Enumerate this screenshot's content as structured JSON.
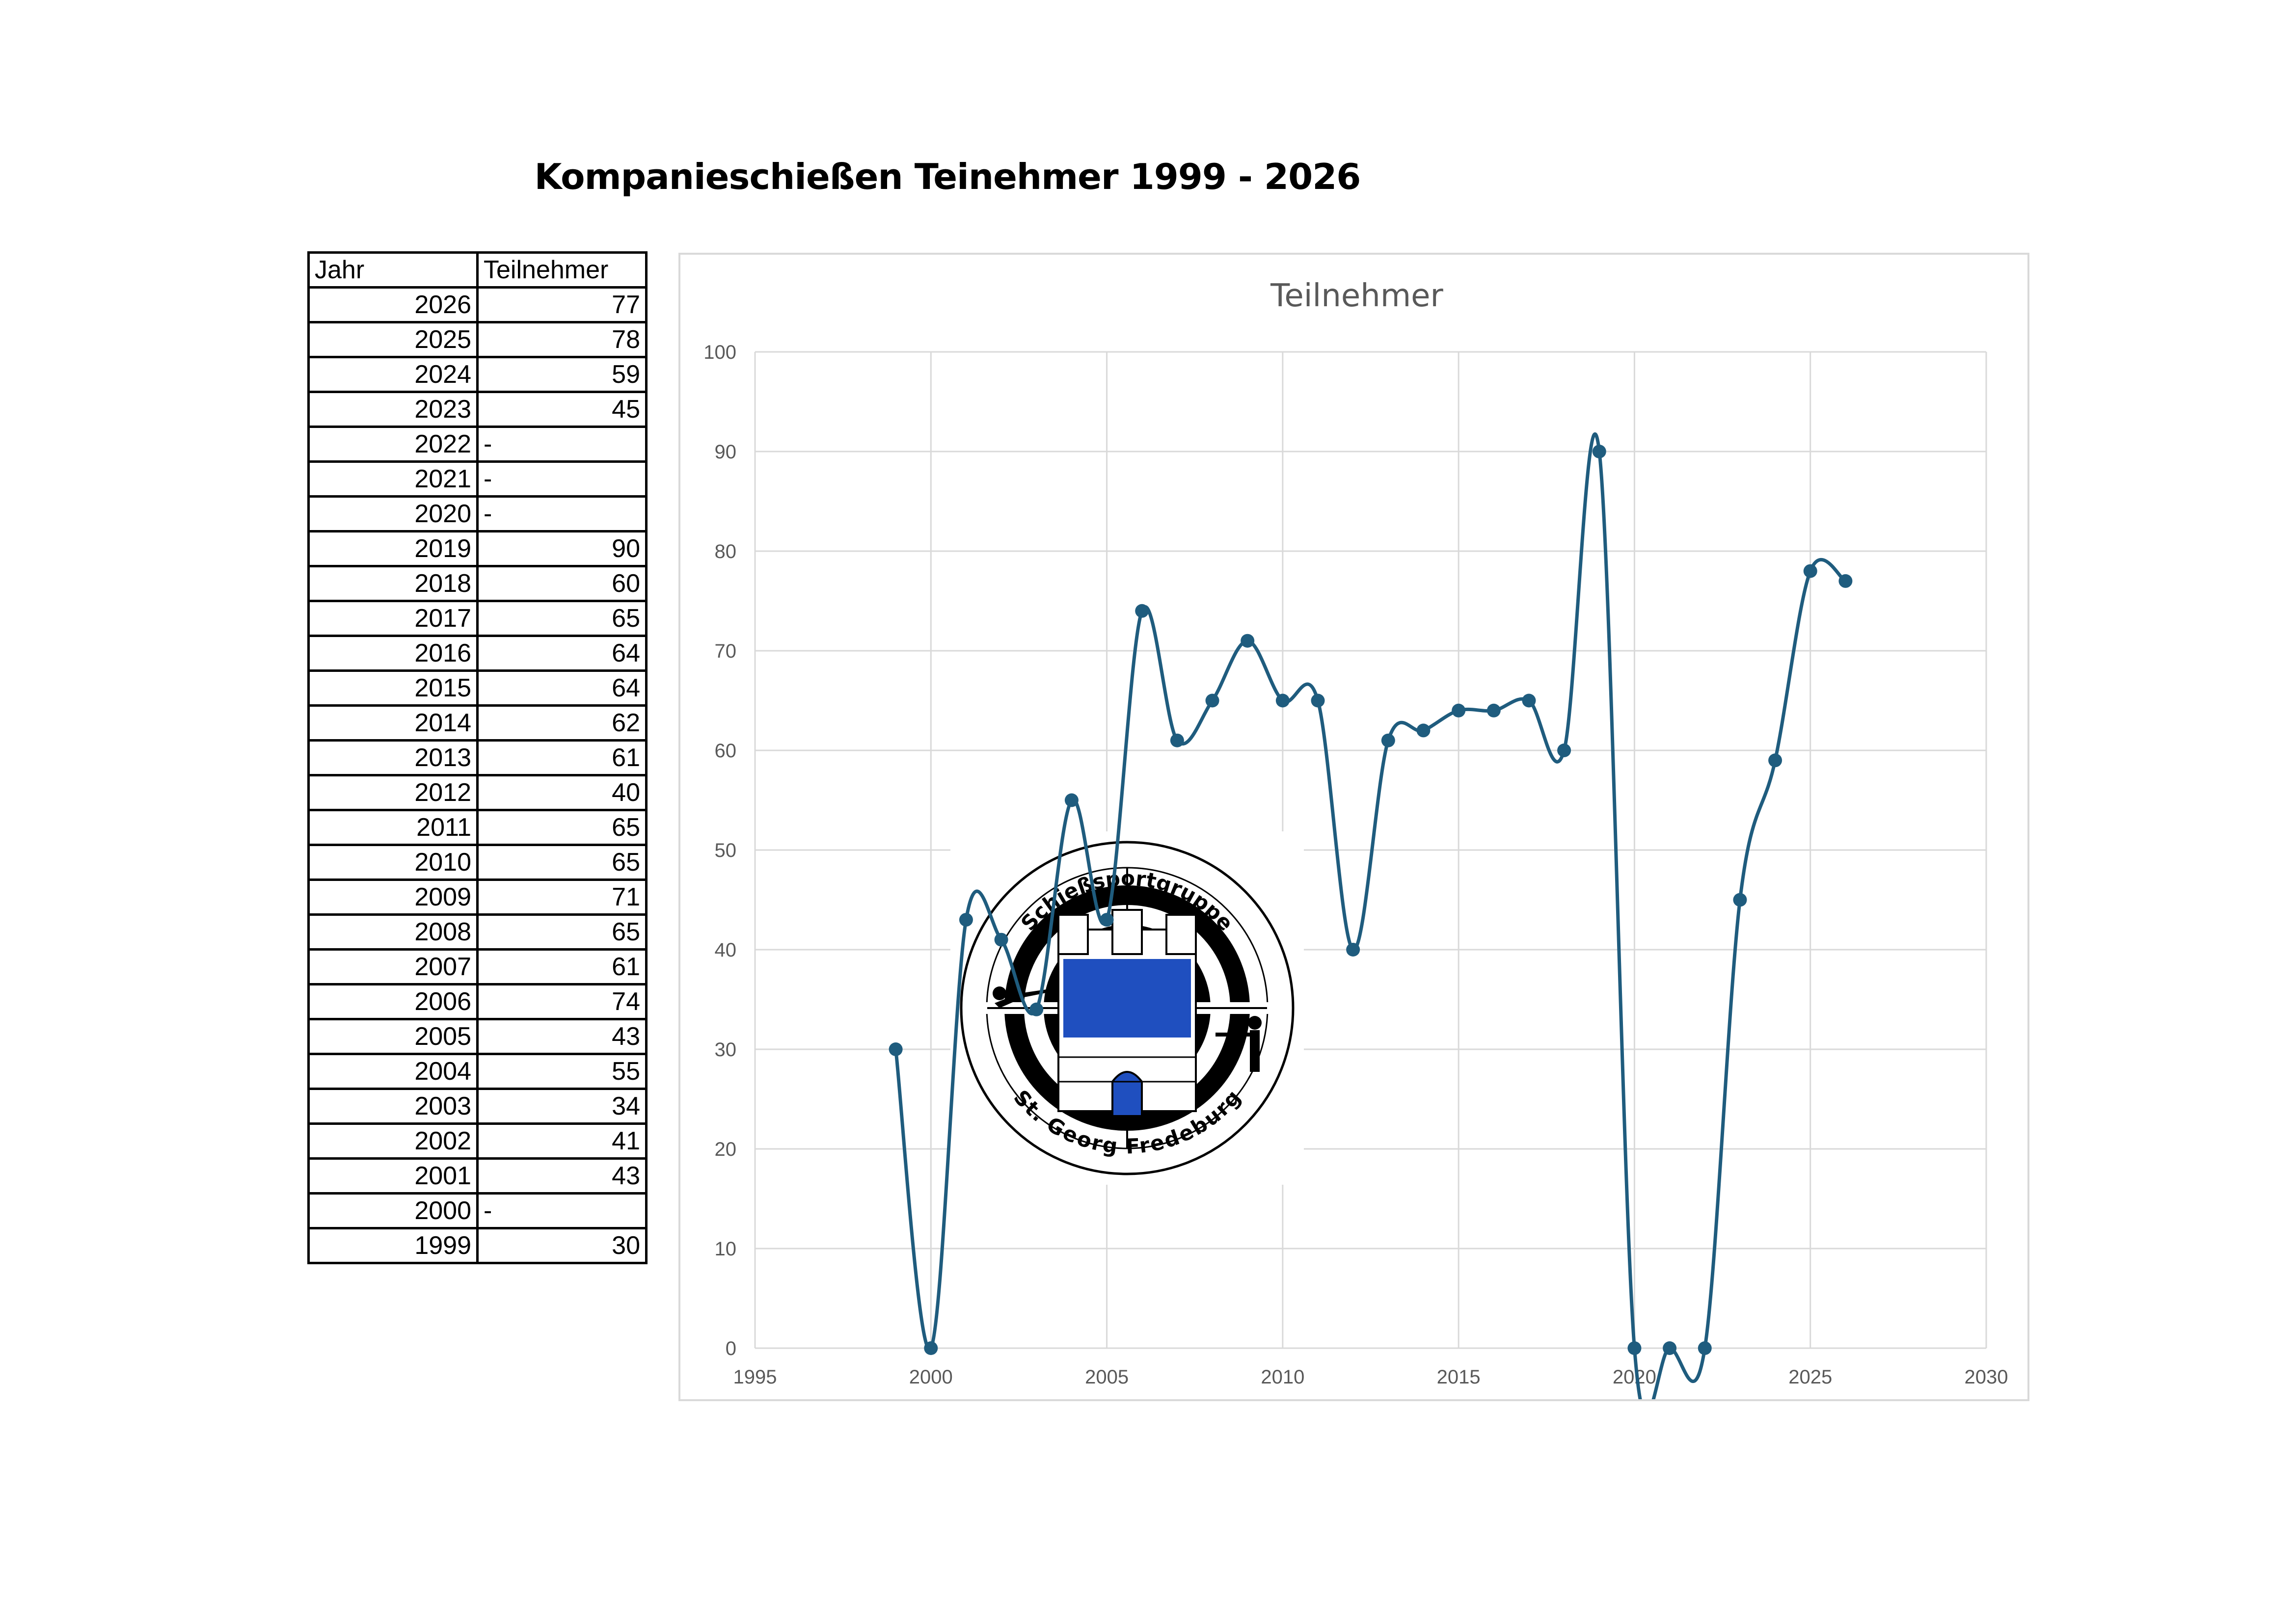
{
  "page": {
    "title": "Kompanieschießen Teinehmer 1999 - 2026"
  },
  "table": {
    "headers": [
      "Jahr",
      "Teilnehmer"
    ],
    "rows": [
      {
        "year": "2026",
        "value": "77"
      },
      {
        "year": "2025",
        "value": "78"
      },
      {
        "year": "2024",
        "value": "59"
      },
      {
        "year": "2023",
        "value": "45"
      },
      {
        "year": "2022",
        "value": "-"
      },
      {
        "year": "2021",
        "value": "-"
      },
      {
        "year": "2020",
        "value": "-"
      },
      {
        "year": "2019",
        "value": "90"
      },
      {
        "year": "2018",
        "value": "60"
      },
      {
        "year": "2017",
        "value": "65"
      },
      {
        "year": "2016",
        "value": "64"
      },
      {
        "year": "2015",
        "value": "64"
      },
      {
        "year": "2014",
        "value": "62"
      },
      {
        "year": "2013",
        "value": "61"
      },
      {
        "year": "2012",
        "value": "40"
      },
      {
        "year": "2011",
        "value": "65"
      },
      {
        "year": "2010",
        "value": "65"
      },
      {
        "year": "2009",
        "value": "71"
      },
      {
        "year": "2008",
        "value": "65"
      },
      {
        "year": "2007",
        "value": "61"
      },
      {
        "year": "2006",
        "value": "74"
      },
      {
        "year": "2005",
        "value": "43"
      },
      {
        "year": "2004",
        "value": "55"
      },
      {
        "year": "2003",
        "value": "34"
      },
      {
        "year": "2002",
        "value": "41"
      },
      {
        "year": "2001",
        "value": "43"
      },
      {
        "year": "2000",
        "value": "-"
      },
      {
        "year": "1999",
        "value": "30"
      }
    ]
  },
  "chart_data": {
    "type": "scatter",
    "title": "Teilnehmer",
    "smoothed_line": true,
    "x": [
      1999,
      2000,
      2001,
      2002,
      2003,
      2004,
      2005,
      2006,
      2007,
      2008,
      2009,
      2010,
      2011,
      2012,
      2013,
      2014,
      2015,
      2016,
      2017,
      2018,
      2019,
      2020,
      2021,
      2022,
      2023,
      2024,
      2025,
      2026
    ],
    "y": [
      30,
      0,
      43,
      41,
      34,
      55,
      43,
      74,
      61,
      65,
      71,
      65,
      65,
      40,
      61,
      62,
      64,
      64,
      65,
      60,
      90,
      0,
      0,
      0,
      45,
      59,
      78,
      77
    ],
    "xlim": [
      1995,
      2030
    ],
    "ylim": [
      0,
      100
    ],
    "xticks": [
      1995,
      2000,
      2005,
      2010,
      2015,
      2020,
      2025,
      2030
    ],
    "yticks": [
      0,
      10,
      20,
      30,
      40,
      50,
      60,
      70,
      80,
      90,
      100
    ],
    "grid": true,
    "legend": "none",
    "colors": {
      "series": "#1f5c7e",
      "grid": "#d9d9d9",
      "text": "#595959"
    }
  },
  "logo": {
    "top_text": "Schießsportgruppe",
    "bottom_text": "St. Georg Fredeburg",
    "colors": {
      "shield": "#1f4fbf",
      "ring": "#000000"
    }
  }
}
